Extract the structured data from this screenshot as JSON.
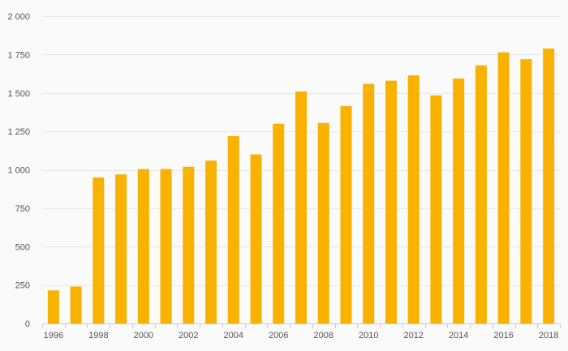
{
  "chart_data": {
    "type": "bar",
    "title": "",
    "xlabel": "",
    "ylabel": "",
    "categories": [
      "1996",
      "1997",
      "1998",
      "1999",
      "2000",
      "2001",
      "2002",
      "2003",
      "2004",
      "2005",
      "2006",
      "2007",
      "2008",
      "2009",
      "2010",
      "2011",
      "2012",
      "2013",
      "2014",
      "2015",
      "2016",
      "2017",
      "2018"
    ],
    "x_tick_labels": [
      "1996",
      "1998",
      "2000",
      "2002",
      "2004",
      "2006",
      "2008",
      "2010",
      "2012",
      "2014",
      "2016",
      "2018"
    ],
    "values": [
      215,
      240,
      950,
      970,
      1005,
      1005,
      1020,
      1060,
      1220,
      1100,
      1300,
      1510,
      1305,
      1415,
      1560,
      1580,
      1615,
      1485,
      1595,
      1680,
      1765,
      1720,
      1790
    ],
    "ylim": [
      0,
      2000
    ],
    "y_ticks": [
      0,
      250,
      500,
      750,
      1000,
      1250,
      1500,
      1750,
      2000
    ],
    "y_tick_labels": [
      "0",
      "250",
      "500",
      "750",
      "1 000",
      "1 250",
      "1 500",
      "1 750",
      "2 000"
    ],
    "grid": true,
    "legend": "none",
    "bar_color": "#f9b200"
  }
}
